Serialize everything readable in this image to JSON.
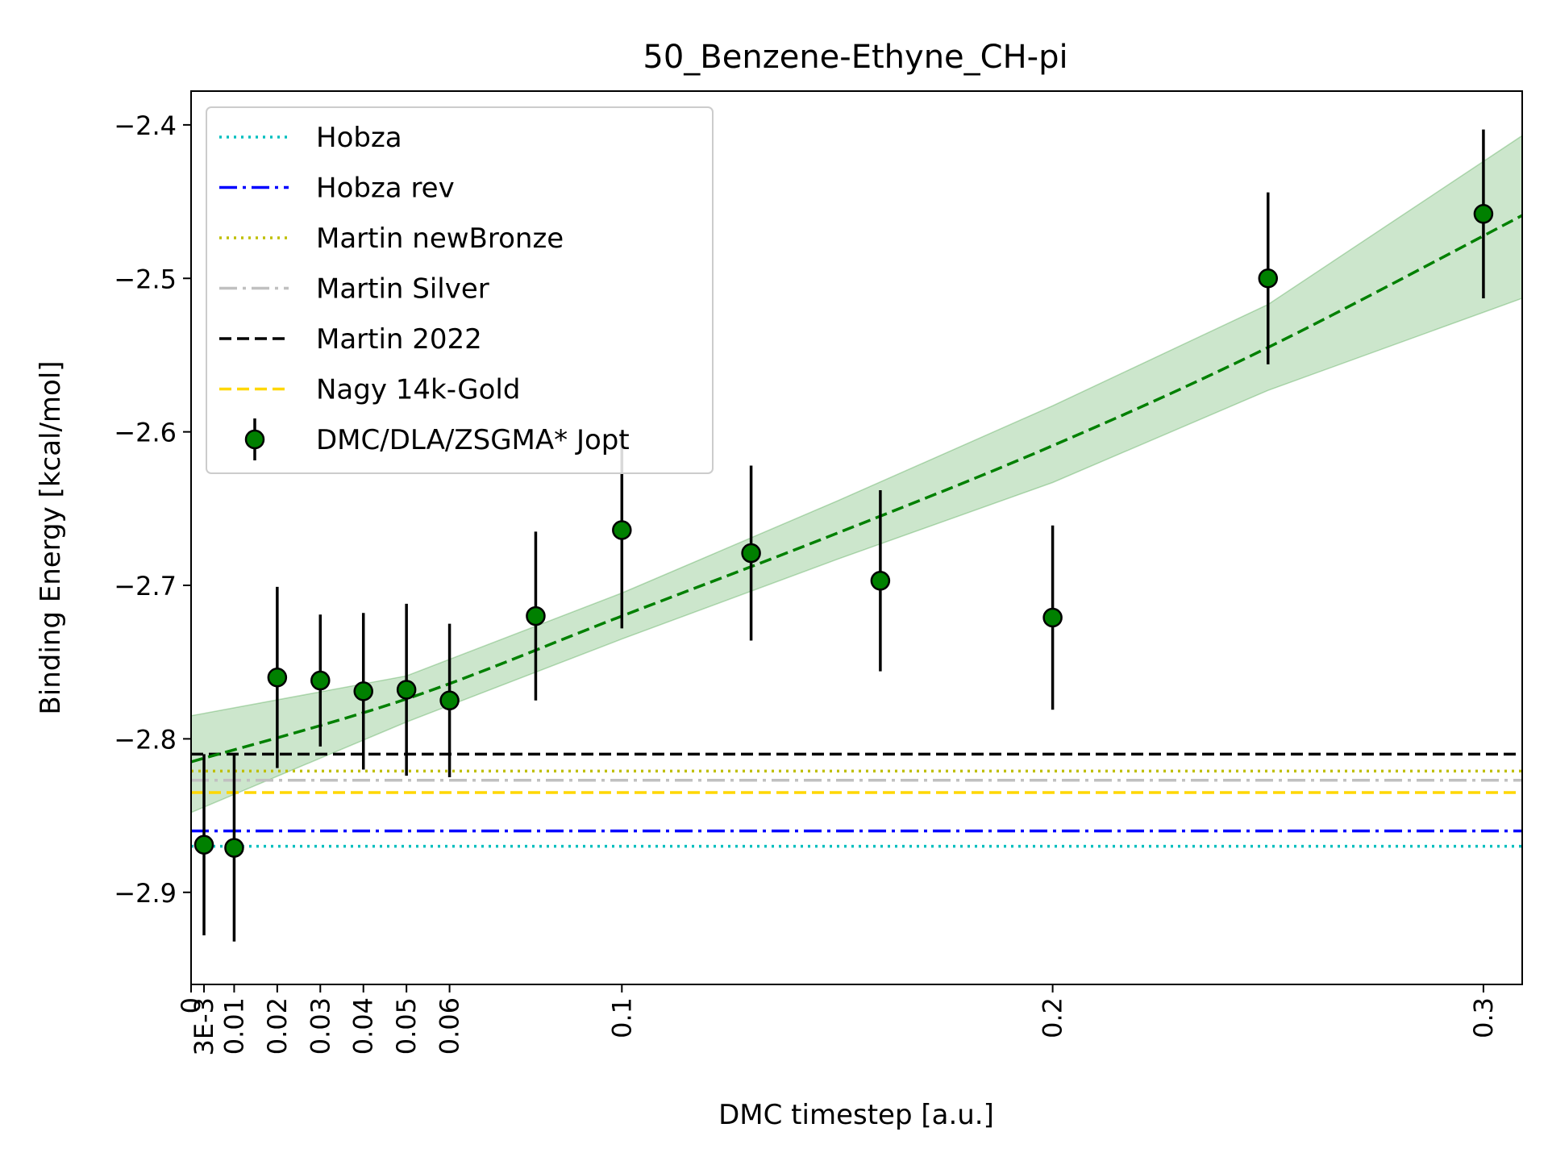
{
  "chart_data": {
    "type": "scatter",
    "title": "50_Benzene-Ethyne_CH-pi",
    "xlabel": "DMC timestep [a.u.]",
    "ylabel": "Binding Energy [kcal/mol]",
    "xlim": [
      0,
      0.309
    ],
    "ylim": [
      -2.96,
      -2.378
    ],
    "xticks": [
      {
        "value": 0,
        "label": "0"
      },
      {
        "value": 0.003,
        "label": "3E-3"
      },
      {
        "value": 0.01,
        "label": "0.01"
      },
      {
        "value": 0.02,
        "label": "0.02"
      },
      {
        "value": 0.03,
        "label": "0.03"
      },
      {
        "value": 0.04,
        "label": "0.04"
      },
      {
        "value": 0.05,
        "label": "0.05"
      },
      {
        "value": 0.06,
        "label": "0.06"
      },
      {
        "value": 0.1,
        "label": "0.1"
      },
      {
        "value": 0.2,
        "label": "0.2"
      },
      {
        "value": 0.3,
        "label": "0.3"
      }
    ],
    "yticks": [
      {
        "value": -2.9,
        "label": "−2.9"
      },
      {
        "value": -2.8,
        "label": "−2.8"
      },
      {
        "value": -2.7,
        "label": "−2.7"
      },
      {
        "value": -2.6,
        "label": "−2.6"
      },
      {
        "value": -2.5,
        "label": "−2.5"
      },
      {
        "value": -2.4,
        "label": "−2.4"
      }
    ],
    "reference_lines": [
      {
        "name": "Hobza",
        "value": -2.87,
        "color": "#00bfbf",
        "style": "dotted"
      },
      {
        "name": "Hobza rev",
        "value": -2.86,
        "color": "#0000ff",
        "style": "dashdot"
      },
      {
        "name": "Martin newBronze",
        "value": -2.821,
        "color": "#bfbf00",
        "style": "dotted"
      },
      {
        "name": "Martin Silver",
        "value": -2.827,
        "color": "#c0c0c0",
        "style": "dashdot"
      },
      {
        "name": "Martin 2022",
        "value": -2.81,
        "color": "#000000",
        "style": "dashed"
      },
      {
        "name": "Nagy 14k-Gold",
        "value": -2.835,
        "color": "#ffd700",
        "style": "dashed"
      }
    ],
    "series": [
      {
        "name": "DMC/DLA/ZSGMA* Jopt",
        "color": "#008000",
        "points": [
          {
            "x": 0.003,
            "y": -2.869,
            "err": 0.059
          },
          {
            "x": 0.01,
            "y": -2.871,
            "err": 0.061
          },
          {
            "x": 0.02,
            "y": -2.76,
            "err": 0.059
          },
          {
            "x": 0.03,
            "y": -2.762,
            "err": 0.043
          },
          {
            "x": 0.04,
            "y": -2.769,
            "err": 0.051
          },
          {
            "x": 0.05,
            "y": -2.768,
            "err": 0.056
          },
          {
            "x": 0.06,
            "y": -2.775,
            "err": 0.05
          },
          {
            "x": 0.08,
            "y": -2.72,
            "err": 0.055
          },
          {
            "x": 0.1,
            "y": -2.664,
            "err": 0.064
          },
          {
            "x": 0.13,
            "y": -2.679,
            "err": 0.057
          },
          {
            "x": 0.16,
            "y": -2.697,
            "err": 0.059
          },
          {
            "x": 0.2,
            "y": -2.721,
            "err": 0.06
          },
          {
            "x": 0.25,
            "y": -2.5,
            "err": 0.056
          },
          {
            "x": 0.3,
            "y": -2.458,
            "err": 0.055
          }
        ]
      }
    ],
    "fit": {
      "color": "#008000",
      "style": "dashed",
      "x": [
        0,
        0.05,
        0.1,
        0.15,
        0.2,
        0.25,
        0.309
      ],
      "y": [
        -2.815,
        -2.774,
        -2.72,
        -2.666,
        -2.609,
        -2.545,
        -2.459
      ],
      "band_upper": [
        -2.785,
        -2.759,
        -2.705,
        -2.645,
        -2.583,
        -2.517,
        -2.407
      ],
      "band_lower": [
        -2.848,
        -2.789,
        -2.735,
        -2.683,
        -2.633,
        -2.573,
        -2.513
      ]
    },
    "legend_position": "top-left",
    "grid": false
  }
}
